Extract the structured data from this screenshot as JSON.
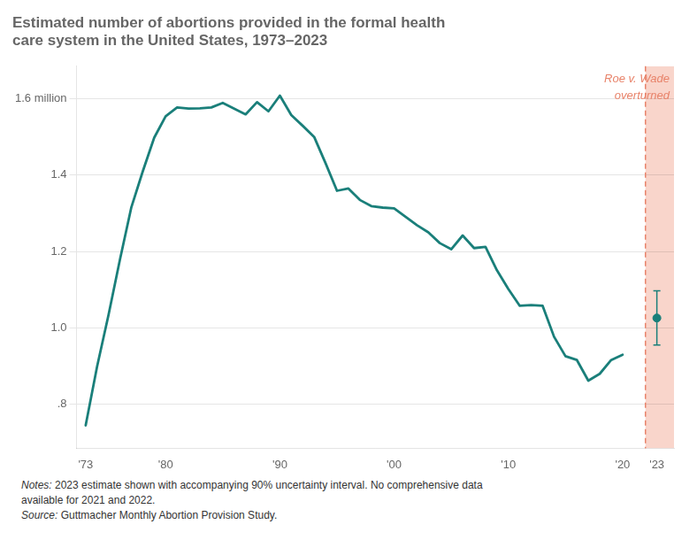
{
  "chart_data": {
    "type": "line",
    "title": [
      "Estimated number of abortions provided in the formal health",
      "care system in the United States, 1973–2023"
    ],
    "x": [
      1973,
      1974,
      1975,
      1976,
      1977,
      1978,
      1979,
      1980,
      1981,
      1982,
      1983,
      1984,
      1985,
      1986,
      1987,
      1988,
      1989,
      1990,
      1991,
      1992,
      1993,
      1994,
      1995,
      1996,
      1997,
      1998,
      1999,
      2000,
      2001,
      2002,
      2003,
      2004,
      2005,
      2006,
      2007,
      2008,
      2009,
      2010,
      2011,
      2012,
      2013,
      2014,
      2015,
      2016,
      2017,
      2018,
      2019,
      2020
    ],
    "values": [
      0.745,
      0.899,
      1.034,
      1.179,
      1.316,
      1.41,
      1.498,
      1.554,
      1.577,
      1.574,
      1.575,
      1.577,
      1.589,
      1.574,
      1.559,
      1.591,
      1.567,
      1.608,
      1.557,
      1.529,
      1.5,
      1.431,
      1.359,
      1.365,
      1.335,
      1.319,
      1.315,
      1.313,
      1.291,
      1.269,
      1.25,
      1.222,
      1.206,
      1.242,
      1.209,
      1.212,
      1.151,
      1.102,
      1.058,
      1.06,
      1.058,
      0.977,
      0.926,
      0.916,
      0.862,
      0.88,
      0.916,
      0.93
    ],
    "color": "#1a7f7a",
    "estimate": {
      "x": 2023,
      "value": 1.026,
      "low": 0.955,
      "high": 1.097
    },
    "shaded_region": {
      "start": 2022,
      "end": 2024.5,
      "color": "#f9d5cb"
    },
    "vline": {
      "x": 2022,
      "color": "#e8836a",
      "line_style": "dashed"
    },
    "annotation": {
      "text": "Roe v. Wade\noverturned",
      "color": "#e8836a"
    },
    "xlim": [
      1972.2,
      2024.5
    ],
    "xticks": [
      {
        "value": 1973,
        "label": "'73"
      },
      {
        "value": 1980,
        "label": "'80"
      },
      {
        "value": 1990,
        "label": "'90"
      },
      {
        "value": 2000,
        "label": "'00"
      },
      {
        "value": 2010,
        "label": "'10"
      },
      {
        "value": 2020,
        "label": "'20"
      },
      {
        "value": 2023,
        "label": "'23"
      }
    ],
    "ylim": [
      0.685,
      1.685
    ],
    "yticks": [
      {
        "value": 0.8,
        "label": ".8"
      },
      {
        "value": 1.0,
        "label": "1.0"
      },
      1.2,
      1.4,
      {
        "value": 1.6,
        "label": "1.6 million"
      }
    ],
    "grid": "y",
    "notes": [
      "Notes: 2023 estimate shown with accompanying 90% uncertainty interval. No comprehensive data",
      "available for 2021 and 2022.",
      "Source: Guttmacher Monthly Abortion Provision Study."
    ]
  }
}
